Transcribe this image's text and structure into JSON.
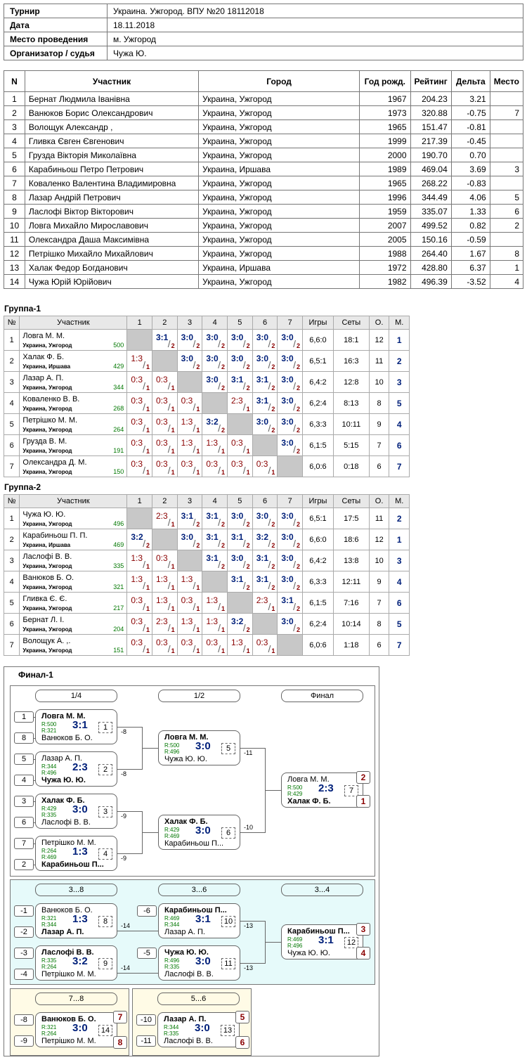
{
  "info": [
    {
      "k": "Турнир",
      "v": "Украина. Ужгород. ВПУ №20 18112018"
    },
    {
      "k": "Дата",
      "v": "18.11.2018"
    },
    {
      "k": "Место проведения",
      "v": "м. Ужгород"
    },
    {
      "k": "Организатор / судья",
      "v": "Чужа Ю."
    }
  ],
  "participants_header": [
    "N",
    "Участник",
    "Город",
    "Год рожд.",
    "Рейтинг",
    "Дельта",
    "Место"
  ],
  "participants": [
    [
      "1",
      "Бернат Людмила Іванівна",
      "Украина, Ужгород",
      "1967",
      "204.23",
      "3.21",
      ""
    ],
    [
      "2",
      "Ванюков Борис Олександрович",
      "Украина, Ужгород",
      "1973",
      "320.88",
      "-0.75",
      "7"
    ],
    [
      "3",
      "Волощук Александр ,",
      "Украина, Ужгород",
      "1965",
      "151.47",
      "-0.81",
      ""
    ],
    [
      "4",
      "Гливка Євген Євгенович",
      "Украина, Ужгород",
      "1999",
      "217.39",
      "-0.45",
      ""
    ],
    [
      "5",
      "Грузда Вікторія Миколаївна",
      "Украина, Ужгород",
      "2000",
      "190.70",
      "0.70",
      ""
    ],
    [
      "6",
      "Карабиньош Петро Петрович",
      "Украина, Иршава",
      "1989",
      "469.04",
      "3.69",
      "3"
    ],
    [
      "7",
      "Коваленко Валентина Владимировна",
      "Украина, Ужгород",
      "1965",
      "268.22",
      "-0.83",
      ""
    ],
    [
      "8",
      "Лазар Андрій Петрович",
      "Украина, Ужгород",
      "1996",
      "344.49",
      "4.06",
      "5"
    ],
    [
      "9",
      "Ласлофі Віктор Вікторович",
      "Украина, Ужгород",
      "1959",
      "335.07",
      "1.33",
      "6"
    ],
    [
      "10",
      "Ловга Михайло Мирославович",
      "Украина, Ужгород",
      "2007",
      "499.52",
      "0.82",
      "2"
    ],
    [
      "11",
      "Олександра Даша Максимівна",
      "Украина, Ужгород",
      "2005",
      "150.16",
      "-0.59",
      ""
    ],
    [
      "12",
      "Петрішко Михайло Михайлович",
      "Украина, Ужгород",
      "1988",
      "264.40",
      "1.67",
      "8"
    ],
    [
      "13",
      "Халак Федор Богданович",
      "Украина, Иршава",
      "1972",
      "428.80",
      "6.37",
      "1"
    ],
    [
      "14",
      "Чужа Юрій Юрійович",
      "Украина, Ужгород",
      "1982",
      "496.39",
      "-3.52",
      "4"
    ]
  ],
  "group_header": [
    "№",
    "Участник",
    "1",
    "2",
    "3",
    "4",
    "5",
    "6",
    "7",
    "Игры",
    "Сеты",
    "О.",
    "М."
  ],
  "groups": [
    {
      "title": "Группа-1",
      "rows": [
        {
          "n": "1",
          "name": "Ловга М. М.",
          "city": "Украина, Ужгород",
          "rating": "500",
          "scores": [
            "",
            "3:1|2",
            "3:0|2",
            "3:0|2",
            "3:0|2",
            "3:0|2",
            "3:0|2"
          ],
          "games": "6,6:0",
          "sets": "18:1",
          "o": "12",
          "m": "1"
        },
        {
          "n": "2",
          "name": "Халак Ф. Б.",
          "city": "Украина, Иршава",
          "rating": "429",
          "scores": [
            "1:3|1",
            "",
            "3:0|2",
            "3:0|2",
            "3:0|2",
            "3:0|2",
            "3:0|2"
          ],
          "games": "6,5:1",
          "sets": "16:3",
          "o": "11",
          "m": "2"
        },
        {
          "n": "3",
          "name": "Лазар А. П.",
          "city": "Украина, Ужгород",
          "rating": "344",
          "scores": [
            "0:3|1",
            "0:3|1",
            "",
            "3:0|2",
            "3:1|2",
            "3:1|2",
            "3:0|2"
          ],
          "games": "6,4:2",
          "sets": "12:8",
          "o": "10",
          "m": "3"
        },
        {
          "n": "4",
          "name": "Коваленко В. В.",
          "city": "Украина, Ужгород",
          "rating": "268",
          "scores": [
            "0:3|1",
            "0:3|1",
            "0:3|1",
            "",
            "2:3|1",
            "3:1|2",
            "3:0|2"
          ],
          "games": "6,2:4",
          "sets": "8:13",
          "o": "8",
          "m": "5"
        },
        {
          "n": "5",
          "name": "Петрішко М. М.",
          "city": "Украина, Ужгород",
          "rating": "264",
          "scores": [
            "0:3|1",
            "0:3|1",
            "1:3|1",
            "3:2|2",
            "",
            "3:0|2",
            "3:0|2"
          ],
          "games": "6,3:3",
          "sets": "10:11",
          "o": "9",
          "m": "4"
        },
        {
          "n": "6",
          "name": "Грузда В. М.",
          "city": "Украина, Ужгород",
          "rating": "191",
          "scores": [
            "0:3|1",
            "0:3|1",
            "1:3|1",
            "1:3|1",
            "0:3|1",
            "",
            "3:0|2"
          ],
          "games": "6,1:5",
          "sets": "5:15",
          "o": "7",
          "m": "6"
        },
        {
          "n": "7",
          "name": "Олександра Д. М.",
          "city": "Украина, Ужгород",
          "rating": "150",
          "scores": [
            "0:3|1",
            "0:3|1",
            "0:3|1",
            "0:3|1",
            "0:3|1",
            "0:3|1",
            ""
          ],
          "games": "6,0:6",
          "sets": "0:18",
          "o": "6",
          "m": "7"
        }
      ]
    },
    {
      "title": "Группа-2",
      "rows": [
        {
          "n": "1",
          "name": "Чужа Ю. Ю.",
          "city": "Украина, Ужгород",
          "rating": "496",
          "scores": [
            "",
            "2:3|1",
            "3:1|2",
            "3:1|2",
            "3:0|2",
            "3:0|2",
            "3:0|2"
          ],
          "games": "6,5:1",
          "sets": "17:5",
          "o": "11",
          "m": "2"
        },
        {
          "n": "2",
          "name": "Карабиньош П. П.",
          "city": "Украина, Иршава",
          "rating": "469",
          "scores": [
            "3:2|2",
            "",
            "3:0|2",
            "3:1|2",
            "3:1|2",
            "3:2|2",
            "3:0|2"
          ],
          "games": "6,6:0",
          "sets": "18:6",
          "o": "12",
          "m": "1"
        },
        {
          "n": "3",
          "name": "Ласлофі В. В.",
          "city": "Украина, Ужгород",
          "rating": "335",
          "scores": [
            "1:3|1",
            "0:3|1",
            "",
            "3:1|2",
            "3:0|2",
            "3:1|2",
            "3:0|2"
          ],
          "games": "6,4:2",
          "sets": "13:8",
          "o": "10",
          "m": "3"
        },
        {
          "n": "4",
          "name": "Ванюков Б. О.",
          "city": "Украина, Ужгород",
          "rating": "321",
          "scores": [
            "1:3|1",
            "1:3|1",
            "1:3|1",
            "",
            "3:1|2",
            "3:1|2",
            "3:0|2"
          ],
          "games": "6,3:3",
          "sets": "12:11",
          "o": "9",
          "m": "4"
        },
        {
          "n": "5",
          "name": "Гливка Є. Є.",
          "city": "Украина, Ужгород",
          "rating": "217",
          "scores": [
            "0:3|1",
            "1:3|1",
            "0:3|1",
            "1:3|1",
            "",
            "2:3|1",
            "3:1|2"
          ],
          "games": "6,1:5",
          "sets": "7:16",
          "o": "7",
          "m": "6"
        },
        {
          "n": "6",
          "name": "Бернат Л. І.",
          "city": "Украина, Ужгород",
          "rating": "204",
          "scores": [
            "0:3|1",
            "2:3|1",
            "1:3|1",
            "1:3|1",
            "3:2|2",
            "",
            "3:0|2"
          ],
          "games": "6,2:4",
          "sets": "10:14",
          "o": "8",
          "m": "5"
        },
        {
          "n": "7",
          "name": "Волощук А. ,.",
          "city": "Украина, Ужгород",
          "rating": "151",
          "scores": [
            "0:3|1",
            "0:3|1",
            "0:3|1",
            "0:3|1",
            "1:3|1",
            "0:3|1",
            ""
          ],
          "games": "6,0:6",
          "sets": "1:18",
          "o": "6",
          "m": "7"
        }
      ]
    }
  ],
  "final": {
    "title": "Финал-1",
    "rounds_top": [
      "1/4",
      "1/2",
      "Финал"
    ],
    "rounds_mid": [
      "3...8",
      "3...6",
      "3...4"
    ],
    "rounds_bl": "7...8",
    "rounds_br": "5...6",
    "matches": {
      "q1": {
        "a": "Ловга М. М.",
        "ra": "R:500",
        "b": "Ванюков Б. О.",
        "rb": "R:321",
        "res": "3:1",
        "n": "1",
        "win": "a",
        "sa": "1",
        "sb": "8",
        "lose": "-8"
      },
      "q2": {
        "a": "Лазар А. П.",
        "ra": "R:344",
        "b": "Чужа Ю. Ю.",
        "rb": "R:496",
        "res": "2:3",
        "n": "2",
        "win": "b",
        "sa": "5",
        "sb": "4",
        "lose": "-8"
      },
      "q3": {
        "a": "Халак Ф. Б.",
        "ra": "R:429",
        "b": "Ласлофі В. В.",
        "rb": "R:335",
        "res": "3:0",
        "n": "3",
        "win": "a",
        "sa": "3",
        "sb": "6",
        "lose": "-9"
      },
      "q4": {
        "a": "Петрішко М. М.",
        "ra": "R:264",
        "b": "Карабиньош П...",
        "rb": "R:469",
        "res": "1:3",
        "n": "4",
        "win": "b",
        "sa": "7",
        "sb": "2",
        "lose": "-9"
      },
      "s1": {
        "a": "Ловга М. М.",
        "ra": "R:500",
        "b": "Чужа Ю. Ю.",
        "rb": "R:496",
        "res": "3:0",
        "n": "5",
        "win": "a",
        "lose": "-11"
      },
      "s2": {
        "a": "Халак Ф. Б.",
        "ra": "R:429",
        "b": "Карабиньош П...",
        "rb": "R:469",
        "res": "3:0",
        "n": "6",
        "win": "a",
        "lose": "-10"
      },
      "f": {
        "a": "Ловга М. М.",
        "ra": "R:500",
        "b": "Халак Ф. Б.",
        "rb": "R:429",
        "res": "2:3",
        "n": "7",
        "win": "b",
        "pa": "2",
        "pb": "1"
      },
      "m1": {
        "a": "Ванюков Б. О.",
        "ra": "R:321",
        "b": "Лазар А. П.",
        "rb": "R:344",
        "res": "1:3",
        "n": "8",
        "win": "b",
        "sa": "-1",
        "sb": "-2",
        "lose": "-14"
      },
      "m2": {
        "a": "Ласлофі В. В.",
        "ra": "R:335",
        "b": "Петрішко М. М.",
        "rb": "R:264",
        "res": "3:2",
        "n": "9",
        "win": "a",
        "sa": "-3",
        "sb": "-4",
        "lose": "-14"
      },
      "m3": {
        "a": "Карабиньош П...",
        "ra": "R:469",
        "b": "Лазар А. П.",
        "rb": "R:344",
        "res": "3:1",
        "n": "10",
        "win": "a",
        "sa": "-6",
        "lose": "-13"
      },
      "m4": {
        "a": "Чужа Ю. Ю.",
        "ra": "R:496",
        "b": "Ласлофі В. В.",
        "rb": "R:335",
        "res": "3:0",
        "n": "11",
        "win": "a",
        "sa": "-5",
        "lose": "-13"
      },
      "m5": {
        "a": "Карабиньош П...",
        "ra": "R:469",
        "b": "Чужа Ю. Ю.",
        "rb": "R:496",
        "res": "3:1",
        "n": "12",
        "win": "a",
        "pa": "3",
        "pb": "4"
      },
      "m6": {
        "a": "Ванюков Б. О.",
        "ra": "R:321",
        "b": "Петрішко М. М.",
        "rb": "R:264",
        "res": "3:0",
        "n": "14",
        "win": "a",
        "sa": "-8",
        "sb": "-9",
        "pa": "7",
        "pb": "8"
      },
      "m7": {
        "a": "Лазар А. П.",
        "ra": "R:344",
        "b": "Ласлофі В. В.",
        "rb": "R:335",
        "res": "3:0",
        "n": "13",
        "win": "a",
        "sa": "-10",
        "sb": "-11",
        "pa": "5",
        "pb": "6"
      }
    }
  }
}
